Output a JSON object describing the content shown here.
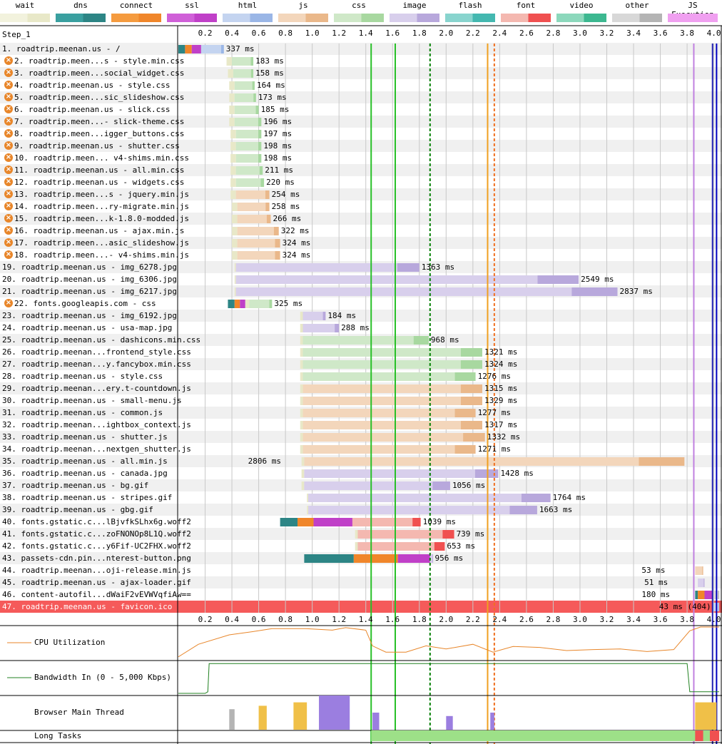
{
  "legend": [
    {
      "label": "wait",
      "color": "#e8e8c8",
      "color2": "#f2f2dd"
    },
    {
      "label": "dns",
      "color": "#2d8585",
      "color2": "#3aa0a0"
    },
    {
      "label": "connect",
      "color": "#f0862a",
      "color2": "#f59b3f"
    },
    {
      "label": "ssl",
      "color": "#c040c8",
      "color2": "#d060d8"
    },
    {
      "label": "html",
      "color": "#9ab6e6",
      "color2": "#c4d4f0"
    },
    {
      "label": "js",
      "color": "#eab88a",
      "color2": "#f3d6bb"
    },
    {
      "label": "css",
      "color": "#a8d8a0",
      "color2": "#cfe8c8"
    },
    {
      "label": "image",
      "color": "#b8a8dc",
      "color2": "#d8cfec"
    },
    {
      "label": "flash",
      "color": "#44b8b0",
      "color2": "#88d4ce"
    },
    {
      "label": "font",
      "color": "#f05050",
      "color2": "#f4b8b0"
    },
    {
      "label": "video",
      "color": "#3cb890",
      "color2": "#8cd8bc"
    },
    {
      "label": "other",
      "color": "#b4b4b4",
      "color2": "#d8d8d8"
    },
    {
      "label": "JS Execution",
      "color": "#f0a0f0",
      "color2": "#f0a0f0"
    }
  ],
  "step_label": "Step_1",
  "chart_data": {
    "type": "waterfall",
    "x_unit": "s",
    "xlim": [
      0,
      4.05
    ],
    "ticks": [
      "0.2",
      "0.4",
      "0.6",
      "0.8",
      "1.0",
      "1.2",
      "1.4",
      "1.6",
      "1.8",
      "2.0",
      "2.2",
      "2.4",
      "2.6",
      "2.8",
      "3.0",
      "3.2",
      "3.4",
      "3.6",
      "3.8",
      "4.0"
    ],
    "markers": [
      {
        "t": 1.44,
        "color": "#28c028",
        "style": "solid"
      },
      {
        "t": 1.62,
        "color": "#28c028",
        "style": "solid"
      },
      {
        "t": 1.88,
        "color": "#008000",
        "style": "dashed"
      },
      {
        "t": 2.31,
        "color": "#f0a020",
        "style": "solid"
      },
      {
        "t": 2.36,
        "color": "#f07020",
        "style": "dashed"
      },
      {
        "t": 3.85,
        "color": "#c080e0",
        "style": "solid"
      },
      {
        "t": 3.99,
        "color": "#2020b0",
        "style": "solid"
      },
      {
        "t": 4.02,
        "color": "#0000c0",
        "style": "solid"
      }
    ],
    "requests": [
      {
        "label": "1. roadtrip.meenan.us - /",
        "type": "html",
        "warn": false,
        "start": 0.0,
        "dns": 0.05,
        "connect": 0.05,
        "ssl": 0.07,
        "wait": 0.0,
        "end": 0.34,
        "time": "337 ms"
      },
      {
        "label": "2. roadtrip.meen...s - style.min.css",
        "type": "css",
        "warn": true,
        "start": 0.36,
        "wait": 0.04,
        "end": 0.56,
        "time": "183 ms"
      },
      {
        "label": "3. roadtrip.meen...social_widget.css",
        "type": "css",
        "warn": true,
        "start": 0.37,
        "wait": 0.04,
        "end": 0.56,
        "time": "158 ms"
      },
      {
        "label": "4. roadtrip.meenan.us - style.css",
        "type": "css",
        "warn": true,
        "start": 0.38,
        "wait": 0.04,
        "end": 0.57,
        "time": "164 ms"
      },
      {
        "label": "5. roadtrip.meen...sic_slideshow.css",
        "type": "css",
        "warn": true,
        "start": 0.38,
        "wait": 0.04,
        "end": 0.58,
        "time": "173 ms"
      },
      {
        "label": "6. roadtrip.meenan.us - slick.css",
        "type": "css",
        "warn": true,
        "start": 0.38,
        "wait": 0.04,
        "end": 0.6,
        "time": "185 ms"
      },
      {
        "label": "7. roadtrip.meen...- slick-theme.css",
        "type": "css",
        "warn": true,
        "start": 0.38,
        "wait": 0.04,
        "end": 0.62,
        "time": "196 ms"
      },
      {
        "label": "8. roadtrip.meen...igger_buttons.css",
        "type": "css",
        "warn": true,
        "start": 0.39,
        "wait": 0.04,
        "end": 0.62,
        "time": "197 ms"
      },
      {
        "label": "9. roadtrip.meenan.us - shutter.css",
        "type": "css",
        "warn": true,
        "start": 0.39,
        "wait": 0.04,
        "end": 0.62,
        "time": "198 ms"
      },
      {
        "label": "10. roadtrip.meen... v4-shims.min.css",
        "type": "css",
        "warn": true,
        "start": 0.39,
        "wait": 0.04,
        "end": 0.62,
        "time": "198 ms"
      },
      {
        "label": "11. roadtrip.meenan.us - all.min.css",
        "type": "css",
        "warn": true,
        "start": 0.39,
        "wait": 0.04,
        "end": 0.63,
        "time": "211 ms"
      },
      {
        "label": "12. roadtrip.meenan.us - widgets.css",
        "type": "css",
        "warn": true,
        "start": 0.39,
        "wait": 0.04,
        "end": 0.64,
        "time": "220 ms"
      },
      {
        "label": "13. roadtrip.meen...s - jquery.min.js",
        "type": "js",
        "warn": true,
        "start": 0.39,
        "wait": 0.04,
        "end": 0.68,
        "time": "254 ms"
      },
      {
        "label": "14. roadtrip.meen...ry-migrate.min.js",
        "type": "js",
        "warn": true,
        "start": 0.4,
        "wait": 0.04,
        "end": 0.68,
        "time": "258 ms"
      },
      {
        "label": "15. roadtrip.meen...k-1.8.0-modded.js",
        "type": "js",
        "warn": true,
        "start": 0.4,
        "wait": 0.04,
        "end": 0.69,
        "time": "266 ms"
      },
      {
        "label": "16. roadtrip.meenan.us - ajax.min.js",
        "type": "js",
        "warn": true,
        "start": 0.4,
        "wait": 0.04,
        "end": 0.75,
        "time": "322 ms"
      },
      {
        "label": "17. roadtrip.meen...asic_slideshow.js",
        "type": "js",
        "warn": true,
        "start": 0.4,
        "wait": 0.04,
        "end": 0.76,
        "time": "324 ms"
      },
      {
        "label": "18. roadtrip.meen...- v4-shims.min.js",
        "type": "js",
        "warn": true,
        "start": 0.4,
        "wait": 0.04,
        "end": 0.76,
        "time": "324 ms"
      },
      {
        "label": "19. roadtrip.meenan.us - img_6278.jpg",
        "type": "image",
        "warn": false,
        "start": 0.42,
        "wait": 0.01,
        "end": 1.8,
        "time": "1363 ms"
      },
      {
        "label": "20. roadtrip.meenan.us - img_6306.jpg",
        "type": "image",
        "warn": false,
        "start": 0.42,
        "wait": 0.01,
        "end": 2.99,
        "time": "2549 ms"
      },
      {
        "label": "21. roadtrip.meenan.us - img_6217.jpg",
        "type": "image",
        "warn": false,
        "start": 0.42,
        "wait": 0.01,
        "end": 3.28,
        "time": "2837 ms"
      },
      {
        "label": "22. fonts.googleapis.com - css",
        "type": "css",
        "warn": true,
        "start": 0.37,
        "dns": 0.05,
        "connect": 0.04,
        "ssl": 0.04,
        "wait": 0.03,
        "end": 0.7,
        "time": "325 ms"
      },
      {
        "label": "23. roadtrip.meenan.us - img_6192.jpg",
        "type": "image",
        "warn": false,
        "start": 0.91,
        "wait": 0.02,
        "end": 1.1,
        "time": "184 ms"
      },
      {
        "label": "24. roadtrip.meenan.us - usa-map.jpg",
        "type": "image",
        "warn": false,
        "start": 0.91,
        "wait": 0.02,
        "end": 1.2,
        "time": "288 ms"
      },
      {
        "label": "25. roadtrip.meenan.us - dashicons.min.css",
        "type": "css",
        "warn": false,
        "start": 0.91,
        "wait": 0.02,
        "end": 1.87,
        "time": "968 ms"
      },
      {
        "label": "26. roadtrip.meenan...frontend_style.css",
        "type": "css",
        "warn": false,
        "start": 0.91,
        "wait": 0.02,
        "end": 2.27,
        "time": "1321 ms"
      },
      {
        "label": "27. roadtrip.meenan...y.fancybox.min.css",
        "type": "css",
        "warn": false,
        "start": 0.91,
        "wait": 0.02,
        "end": 2.27,
        "time": "1324 ms"
      },
      {
        "label": "28. roadtrip.meenan.us - style.css",
        "type": "css",
        "warn": false,
        "start": 0.91,
        "wait": 0.02,
        "end": 2.22,
        "time": "1276 ms"
      },
      {
        "label": "29. roadtrip.meenan...ery.t-countdown.js",
        "type": "js",
        "warn": false,
        "start": 0.91,
        "wait": 0.02,
        "end": 2.27,
        "time": "1315 ms"
      },
      {
        "label": "30. roadtrip.meenan.us - small-menu.js",
        "type": "js",
        "warn": false,
        "start": 0.91,
        "wait": 0.02,
        "end": 2.27,
        "time": "1329 ms"
      },
      {
        "label": "31. roadtrip.meenan.us - common.js",
        "type": "js",
        "warn": false,
        "start": 0.91,
        "wait": 0.02,
        "end": 2.22,
        "time": "1277 ms"
      },
      {
        "label": "32. roadtrip.meenan...ightbox_context.js",
        "type": "js",
        "warn": false,
        "start": 0.91,
        "wait": 0.02,
        "end": 2.27,
        "time": "1317 ms"
      },
      {
        "label": "33. roadtrip.meenan.us - shutter.js",
        "type": "js",
        "warn": false,
        "start": 0.91,
        "wait": 0.02,
        "end": 2.29,
        "time": "1332 ms"
      },
      {
        "label": "34. roadtrip.meenan...nextgen_shutter.js",
        "type": "js",
        "warn": false,
        "start": 0.91,
        "wait": 0.02,
        "end": 2.22,
        "time": "1271 ms"
      },
      {
        "label": "35. roadtrip.meenan.us - all.min.js",
        "type": "js",
        "warn": false,
        "start": 0.92,
        "wait": 0.02,
        "end": 3.78,
        "time": "2806 ms"
      },
      {
        "label": "36. roadtrip.meenan.us - canada.jpg",
        "type": "image",
        "warn": false,
        "start": 0.92,
        "wait": 0.02,
        "end": 2.39,
        "time": "1428 ms"
      },
      {
        "label": "37. roadtrip.meenan.us - bg.gif",
        "type": "image",
        "warn": false,
        "start": 0.92,
        "wait": 0.02,
        "end": 2.03,
        "time": "1056 ms"
      },
      {
        "label": "38. roadtrip.meenan.us - stripes.gif",
        "type": "image",
        "warn": false,
        "start": 0.96,
        "wait": 0.01,
        "end": 2.78,
        "time": "1764 ms"
      },
      {
        "label": "39. roadtrip.meenan.us - gbg.gif",
        "type": "image",
        "warn": false,
        "start": 0.96,
        "wait": 0.01,
        "end": 2.68,
        "time": "1663 ms"
      },
      {
        "label": "40. fonts.gstatic.c...lBjvfkSLhx6g.woff2",
        "type": "font",
        "warn": false,
        "start": 0.76,
        "dns": 0.13,
        "connect": 0.12,
        "ssl": 0.29,
        "wait": 0.0,
        "end": 1.81,
        "time": "1039 ms"
      },
      {
        "label": "41. fonts.gstatic.c...zoFNONOp8L1Q.woff2",
        "type": "font",
        "warn": false,
        "start": 1.32,
        "wait": 0.02,
        "end": 2.06,
        "time": "739 ms"
      },
      {
        "label": "42. fonts.gstatic.c...y6Fif-UC2FHX.woff2",
        "type": "font",
        "warn": false,
        "start": 1.32,
        "wait": 0.02,
        "end": 1.99,
        "time": "653 ms"
      },
      {
        "label": "43. passets-cdn.pin...nterest-button.png",
        "type": "image",
        "warn": false,
        "start": 0.94,
        "dns": 0.37,
        "connect": 0.33,
        "ssl": 0.24,
        "wait": 0.0,
        "end": 1.9,
        "time": "956 ms"
      },
      {
        "label": "44. roadtrip.meenan...oji-release.min.js",
        "type": "js",
        "warn": false,
        "start": 3.86,
        "wait": 0.0,
        "end": 3.92,
        "time": "53 ms"
      },
      {
        "label": "45. roadtrip.meenan.us - ajax-loader.gif",
        "type": "image",
        "warn": false,
        "start": 3.88,
        "wait": 0.0,
        "end": 3.93,
        "time": "51 ms"
      },
      {
        "label": "46. content-autofil...dWaiF2vEVWVqfiAw==",
        "type": "other",
        "warn": false,
        "start": 3.86,
        "dns": 0.02,
        "connect": 0.05,
        "ssl": 0.06,
        "wait": 0.0,
        "end": 4.04,
        "time": "180 ms"
      },
      {
        "label": "47. roadtrip.meenan.us - favicon.ico",
        "type": "html",
        "warn": false,
        "error": true,
        "start": 3.99,
        "wait": 0.0,
        "end": 4.04,
        "time": "43 ms (404)"
      }
    ],
    "graphs": [
      {
        "label": "CPU Utilization",
        "color": "#e8862a"
      },
      {
        "label": "Bandwidth In (0 - 5,000 Kbps)",
        "color": "#208020"
      },
      {
        "label": "Browser Main Thread",
        "color": "#9b7ee0"
      },
      {
        "label": "Long Tasks",
        "color": "#9de088"
      }
    ]
  }
}
